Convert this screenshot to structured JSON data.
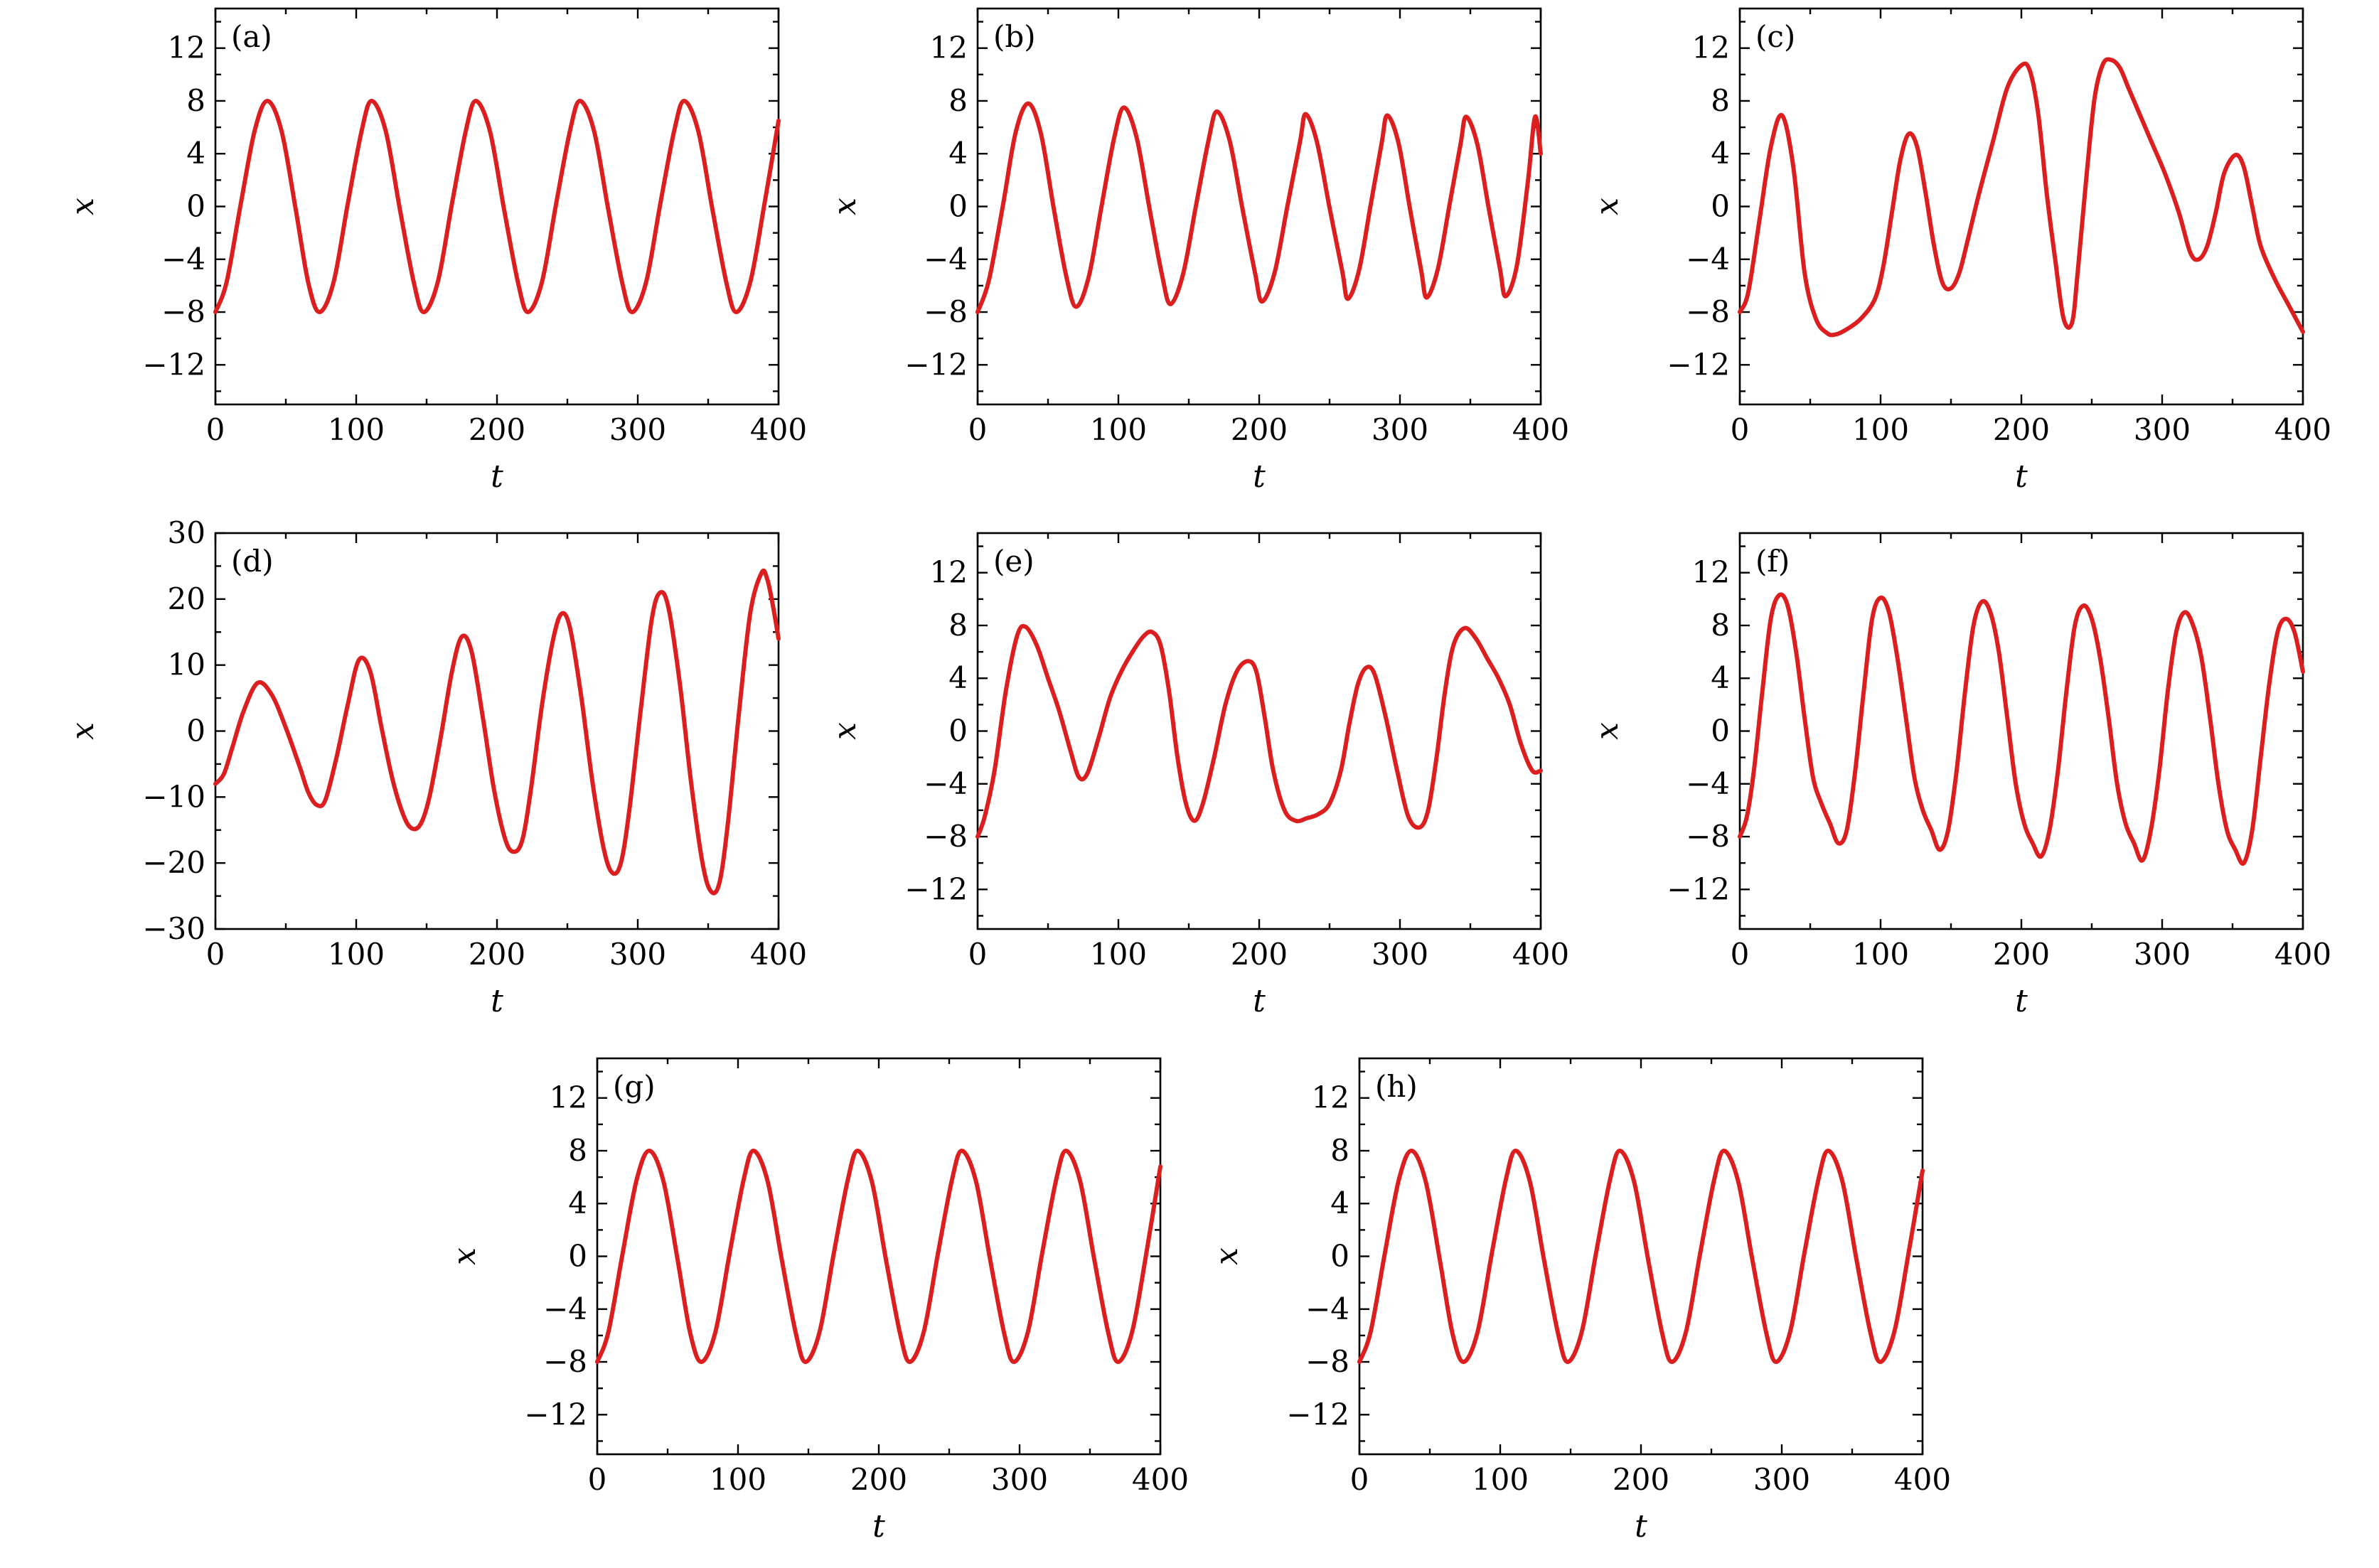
{
  "series_color": "#dc1e1e",
  "chart_data": [
    {
      "panel": "(a)",
      "type": "line",
      "xlabel": "t",
      "ylabel": "x",
      "xlim": [
        0,
        400
      ],
      "ylim": [
        -15,
        15
      ],
      "xticks": [
        "0",
        "100",
        "200",
        "300",
        "400"
      ],
      "yticks": [
        "12",
        "8",
        "4",
        "0",
        "−4",
        "−8",
        "−12"
      ],
      "series": [
        {
          "x": [
            0,
            8,
            18,
            28,
            37,
            47,
            57,
            66,
            74,
            84,
            94,
            104,
            111,
            121,
            131,
            141,
            148,
            158,
            168,
            178,
            185,
            195,
            205,
            215,
            222,
            232,
            242,
            252,
            259,
            269,
            279,
            289,
            296,
            306,
            316,
            326,
            333,
            343,
            353,
            363,
            370,
            380,
            390,
            400
          ],
          "y": [
            -8,
            -5.7,
            0.2,
            5.8,
            8,
            5.7,
            -0.2,
            -5.8,
            -8,
            -5.7,
            0.2,
            5.8,
            8,
            5.7,
            -0.2,
            -5.8,
            -8,
            -5.7,
            0.2,
            5.8,
            8,
            5.7,
            -0.2,
            -5.8,
            -8,
            -5.7,
            0.2,
            5.8,
            8,
            5.7,
            -0.2,
            -5.8,
            -8,
            -5.7,
            0.2,
            5.8,
            8,
            5.7,
            -0.2,
            -5.8,
            -8,
            -5.7,
            0.2,
            6.5
          ]
        }
      ]
    },
    {
      "panel": "(b)",
      "type": "line",
      "xlabel": "t",
      "ylabel": "x",
      "xlim": [
        0,
        400
      ],
      "ylim": [
        -15,
        15
      ],
      "xticks": [
        "0",
        "100",
        "200",
        "300",
        "400"
      ],
      "yticks": [
        "12",
        "8",
        "4",
        "0",
        "−4",
        "−8",
        "−12"
      ],
      "series": [
        {
          "x": [
            0,
            8,
            18,
            27,
            36,
            45,
            54,
            63,
            70,
            79,
            88,
            97,
            104,
            113,
            122,
            131,
            137,
            146,
            155,
            164,
            170,
            179,
            188,
            197,
            202,
            211,
            220,
            229,
            233,
            241,
            250,
            259,
            263,
            271,
            279,
            287,
            291,
            299,
            307,
            315,
            319,
            327,
            335,
            343,
            347,
            355,
            363,
            371,
            375,
            383,
            391,
            396,
            400
          ],
          "y": [
            -8,
            -5.6,
            0.1,
            5.6,
            7.8,
            5.5,
            -0.1,
            -5.3,
            -7.6,
            -5.3,
            0,
            5.2,
            7.5,
            5.2,
            -0.1,
            -5.2,
            -7.4,
            -5.1,
            0,
            5,
            7.2,
            5,
            -0.1,
            -5,
            -7.2,
            -5,
            0,
            4.9,
            7,
            4.9,
            -0.1,
            -4.9,
            -7,
            -4.8,
            0,
            4.8,
            6.9,
            4.8,
            -0.1,
            -4.8,
            -6.9,
            -4.7,
            0,
            4.7,
            6.8,
            4.7,
            -0.1,
            -4.7,
            -6.8,
            -4.5,
            2,
            6.8,
            4
          ]
        }
      ]
    },
    {
      "panel": "(c)",
      "type": "line",
      "xlabel": "t",
      "ylabel": "x",
      "xlim": [
        0,
        400
      ],
      "ylim": [
        -15,
        15
      ],
      "xticks": [
        "0",
        "100",
        "200",
        "300",
        "400"
      ],
      "yticks": [
        "12",
        "8",
        "4",
        "0",
        "−4",
        "−8",
        "−12"
      ],
      "series": [
        {
          "x": [
            0,
            6,
            14,
            22,
            30,
            38,
            46,
            54,
            62,
            68,
            76,
            86,
            96,
            102,
            108,
            114,
            120,
            126,
            132,
            138,
            144,
            150,
            156,
            162,
            170,
            180,
            190,
            200,
            206,
            212,
            218,
            224,
            230,
            236,
            240,
            246,
            252,
            258,
            264,
            270,
            276,
            284,
            292,
            302,
            312,
            320,
            326,
            332,
            338,
            344,
            352,
            358,
            364,
            370,
            380,
            390,
            400
          ],
          "y": [
            -8,
            -6.5,
            -1,
            4.5,
            6.9,
            3,
            -5,
            -8.5,
            -9.6,
            -9.7,
            -9.3,
            -8.5,
            -7,
            -4.5,
            -0.5,
            3.5,
            5.5,
            4.5,
            1,
            -3,
            -5.8,
            -6.2,
            -5,
            -2.5,
            1,
            5,
            9,
            10.7,
            10.3,
            7,
            1,
            -4,
            -8.5,
            -8.8,
            -5,
            2,
            8.2,
            10.8,
            11.1,
            10.5,
            9,
            7,
            5,
            2.5,
            -0.5,
            -3.5,
            -4,
            -3,
            -0.5,
            2.5,
            3.9,
            3,
            0,
            -3,
            -5.5,
            -7.5,
            -9.5
          ]
        }
      ]
    },
    {
      "panel": "(d)",
      "type": "line",
      "xlabel": "t",
      "ylabel": "x",
      "xlim": [
        0,
        400
      ],
      "ylim": [
        -30,
        30
      ],
      "xticks": [
        "0",
        "100",
        "200",
        "300",
        "400"
      ],
      "yticks": [
        "30",
        "20",
        "10",
        "0",
        "−10",
        "−20",
        "−30"
      ],
      "series": [
        {
          "x": [
            0,
            6,
            12,
            20,
            30,
            40,
            50,
            60,
            66,
            72,
            78,
            86,
            94,
            102,
            110,
            118,
            126,
            134,
            140,
            146,
            152,
            160,
            168,
            175,
            182,
            190,
            198,
            206,
            212,
            218,
            224,
            232,
            240,
            246,
            252,
            260,
            268,
            276,
            282,
            288,
            294,
            302,
            310,
            316,
            322,
            330,
            338,
            346,
            352,
            358,
            364,
            372,
            380,
            388,
            392,
            396,
            400
          ],
          "y": [
            -8,
            -6.5,
            -2.5,
            3,
            7.3,
            5.5,
            0.5,
            -5.5,
            -9.3,
            -11.2,
            -10.5,
            -4,
            4,
            10.8,
            9,
            0.5,
            -7.5,
            -13,
            -14.8,
            -14,
            -10,
            -1,
            9,
            14.3,
            12,
            2,
            -9,
            -16.5,
            -18.3,
            -16.5,
            -9,
            4,
            14,
            17.8,
            15.5,
            5,
            -8,
            -18,
            -21.5,
            -20,
            -12,
            3,
            17,
            21,
            18.5,
            7,
            -8,
            -20,
            -24.3,
            -23,
            -14,
            3,
            18,
            24,
            23,
            19,
            14
          ]
        }
      ]
    },
    {
      "panel": "(e)",
      "type": "line",
      "xlabel": "t",
      "ylabel": "x",
      "xlim": [
        0,
        400
      ],
      "ylim": [
        -15,
        15
      ],
      "xticks": [
        "0",
        "100",
        "200",
        "300",
        "400"
      ],
      "yticks": [
        "12",
        "8",
        "4",
        "0",
        "−4",
        "−8",
        "−12"
      ],
      "series": [
        {
          "x": [
            0,
            5,
            12,
            20,
            28,
            34,
            42,
            50,
            58,
            66,
            72,
            78,
            86,
            94,
            102,
            110,
            118,
            124,
            130,
            136,
            142,
            148,
            154,
            160,
            168,
            176,
            184,
            192,
            198,
            204,
            210,
            218,
            226,
            234,
            242,
            250,
            258,
            264,
            270,
            276,
            282,
            290,
            298,
            306,
            314,
            320,
            326,
            332,
            338,
            346,
            354,
            362,
            370,
            378,
            386,
            394,
            400
          ],
          "y": [
            -8,
            -6.5,
            -3,
            3,
            7.2,
            7.9,
            6.5,
            4,
            1.5,
            -1.5,
            -3.5,
            -3.2,
            -0.5,
            2.5,
            4.5,
            6,
            7.2,
            7.5,
            6.5,
            3,
            -2,
            -5.5,
            -6.8,
            -5.5,
            -2,
            2,
            4.5,
            5.3,
            4.5,
            1,
            -3,
            -6,
            -6.8,
            -6.6,
            -6.3,
            -5.5,
            -3,
            0.5,
            3.5,
            4.8,
            4.3,
            1,
            -3,
            -6.5,
            -7.3,
            -6,
            -2,
            3,
            6.5,
            7.8,
            7,
            5.5,
            4,
            2,
            -1,
            -3,
            -3
          ]
        }
      ]
    },
    {
      "panel": "(f)",
      "type": "line",
      "xlabel": "t",
      "ylabel": "x",
      "xlim": [
        0,
        400
      ],
      "ylim": [
        -15,
        15
      ],
      "xticks": [
        "0",
        "100",
        "200",
        "300",
        "400"
      ],
      "yticks": [
        "12",
        "8",
        "4",
        "0",
        "−4",
        "−8",
        "−12"
      ],
      "series": [
        {
          "x": [
            0,
            5,
            10,
            16,
            22,
            28,
            34,
            40,
            46,
            52,
            58,
            64,
            70,
            76,
            82,
            88,
            94,
            100,
            106,
            112,
            118,
            124,
            130,
            136,
            142,
            148,
            154,
            160,
            166,
            172,
            178,
            184,
            190,
            196,
            202,
            208,
            214,
            220,
            226,
            232,
            238,
            244,
            250,
            256,
            262,
            268,
            274,
            280,
            286,
            292,
            298,
            304,
            310,
            316,
            322,
            328,
            334,
            340,
            346,
            352,
            358,
            364,
            370,
            376,
            382,
            388,
            394,
            400
          ],
          "y": [
            -8,
            -6.5,
            -3,
            3,
            8.5,
            10.3,
            9.5,
            6,
            1,
            -3.5,
            -5.5,
            -7,
            -8.5,
            -7.5,
            -3,
            3,
            8.5,
            10.1,
            9,
            5.5,
            1,
            -3.5,
            -6,
            -7.5,
            -9,
            -7.5,
            -3,
            3,
            8,
            9.8,
            9,
            6,
            1,
            -4,
            -7,
            -8.5,
            -9.5,
            -7.5,
            -3,
            3,
            8,
            9.5,
            8.5,
            5.5,
            1,
            -4,
            -7,
            -8.5,
            -9.8,
            -7.5,
            -3,
            3,
            7.5,
            9,
            8,
            5.5,
            1,
            -4,
            -7.5,
            -9,
            -10,
            -7.5,
            -2,
            3.5,
            7.5,
            8.5,
            7.5,
            4.5
          ]
        }
      ]
    },
    {
      "panel": "(g)",
      "type": "line",
      "xlabel": "t",
      "ylabel": "x",
      "xlim": [
        0,
        400
      ],
      "ylim": [
        -15,
        15
      ],
      "xticks": [
        "0",
        "100",
        "200",
        "300",
        "400"
      ],
      "yticks": [
        "12",
        "8",
        "4",
        "0",
        "−4",
        "−8",
        "−12"
      ],
      "series": [
        {
          "x": [
            0,
            8,
            18,
            28,
            37,
            47,
            57,
            66,
            74,
            84,
            94,
            104,
            111,
            121,
            131,
            141,
            148,
            158,
            168,
            178,
            185,
            195,
            205,
            215,
            222,
            232,
            242,
            252,
            259,
            269,
            279,
            289,
            296,
            306,
            316,
            326,
            333,
            343,
            353,
            363,
            370,
            380,
            390,
            400
          ],
          "y": [
            -8,
            -5.7,
            0.2,
            5.8,
            8,
            5.7,
            -0.2,
            -5.8,
            -8,
            -5.7,
            0.2,
            5.8,
            8,
            5.7,
            -0.2,
            -5.8,
            -8,
            -5.7,
            0.2,
            5.8,
            8,
            5.7,
            -0.2,
            -5.8,
            -8,
            -5.7,
            0.2,
            5.8,
            8,
            5.7,
            -0.2,
            -5.8,
            -8,
            -5.7,
            0.2,
            5.8,
            8,
            5.7,
            -0.2,
            -5.8,
            -8,
            -5.7,
            0.2,
            6.8
          ]
        }
      ]
    },
    {
      "panel": "(h)",
      "type": "line",
      "xlabel": "t",
      "ylabel": "x",
      "xlim": [
        0,
        400
      ],
      "ylim": [
        -15,
        15
      ],
      "xticks": [
        "0",
        "100",
        "200",
        "300",
        "400"
      ],
      "yticks": [
        "12",
        "8",
        "4",
        "0",
        "−4",
        "−8",
        "−12"
      ],
      "series": [
        {
          "x": [
            0,
            8,
            18,
            28,
            37,
            47,
            57,
            66,
            74,
            84,
            94,
            104,
            111,
            121,
            131,
            141,
            148,
            158,
            168,
            178,
            185,
            195,
            205,
            215,
            222,
            232,
            242,
            252,
            259,
            269,
            279,
            289,
            296,
            306,
            316,
            326,
            333,
            343,
            353,
            363,
            370,
            380,
            390,
            400
          ],
          "y": [
            -8,
            -5.7,
            0.2,
            5.8,
            8,
            5.7,
            -0.2,
            -5.8,
            -8,
            -5.7,
            0.2,
            5.8,
            8,
            5.7,
            -0.2,
            -5.8,
            -8,
            -5.7,
            0.2,
            5.8,
            8,
            5.7,
            -0.2,
            -5.8,
            -8,
            -5.7,
            0.2,
            5.8,
            8,
            5.7,
            -0.2,
            -5.8,
            -8,
            -5.7,
            0.2,
            5.8,
            8,
            5.7,
            -0.2,
            -5.8,
            -8,
            -5.7,
            0.2,
            6.5
          ]
        }
      ]
    }
  ]
}
